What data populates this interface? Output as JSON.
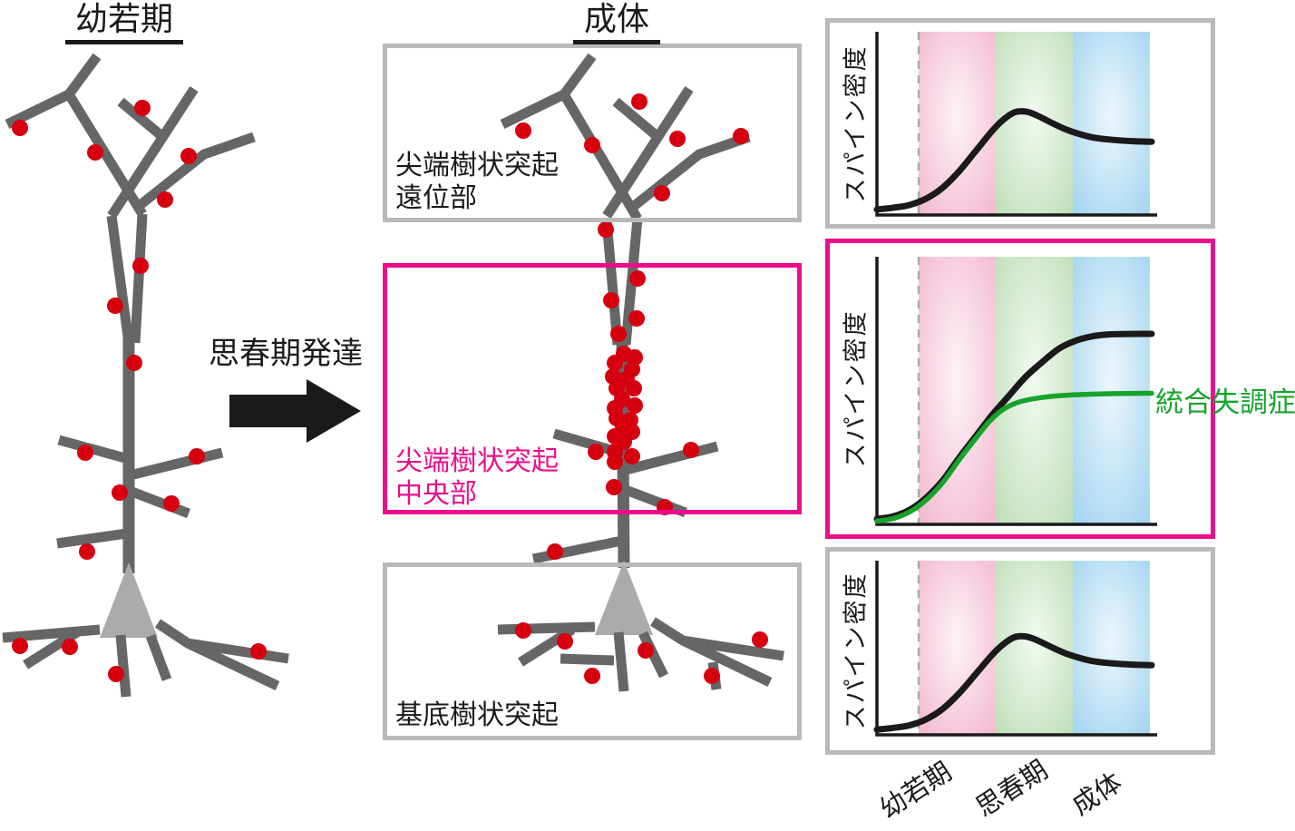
{
  "figure": {
    "juvenile_title": "幼若期",
    "adult_title": "成体",
    "arrow_label": "思春期発達"
  },
  "regions": {
    "distal": {
      "line1": "尖端樹状突起",
      "line2": "遠位部"
    },
    "central": {
      "line1": "尖端樹状突起",
      "line2": "中央部"
    },
    "basal": {
      "label": "基底樹状突起"
    }
  },
  "graphs": {
    "ylabel": "スパイン密度",
    "x_stage_labels": [
      "幼若期",
      "思春期",
      "成体"
    ],
    "annotation": "統合失調症"
  },
  "colors": {
    "dendrite": "#666666",
    "soma": "#ababab",
    "spine_red": "#d6000f",
    "magenta_accent": "#eb0d8b",
    "schizophrenia_green": "#17a32b",
    "box_border_gray": "#b9b9b9",
    "axis_black": "#1a1a1a",
    "dashed_gray": "#aaaaaa",
    "band_pink_edge": "#f3b8d0",
    "band_pink_center": "#fdf3f8",
    "band_green_edge": "#bfdfb8",
    "band_green_center": "#f2f9f0",
    "band_blue_edge": "#a2d4f0",
    "band_blue_center": "#edf7fd"
  },
  "chart_data": [
    {
      "type": "line",
      "region": "尖端樹状突起遠位部",
      "ylabel": "スパイン密度",
      "x_stages": [
        "幼若期",
        "思春期",
        "成体"
      ],
      "x_range": [
        0,
        1
      ],
      "y_range": [
        0,
        1
      ],
      "grid": false,
      "dashed_line_x": 0.152,
      "stage_bands": [
        {
          "label": "幼若期",
          "x": [
            0.152,
            0.432
          ],
          "band": "pink"
        },
        {
          "label": "思春期",
          "x": [
            0.432,
            0.713
          ],
          "band": "green"
        },
        {
          "label": "成体",
          "x": [
            0.713,
            0.993
          ],
          "band": "blue"
        }
      ],
      "series": [
        {
          "name": "",
          "color": "#1a1a1a",
          "points": [
            [
              0,
              0.03
            ],
            [
              0.06,
              0.04
            ],
            [
              0.12,
              0.055
            ],
            [
              0.18,
              0.09
            ],
            [
              0.24,
              0.15
            ],
            [
              0.3,
              0.24
            ],
            [
              0.36,
              0.35
            ],
            [
              0.42,
              0.46
            ],
            [
              0.46,
              0.52
            ],
            [
              0.5,
              0.56
            ],
            [
              0.54,
              0.565
            ],
            [
              0.58,
              0.545
            ],
            [
              0.64,
              0.5
            ],
            [
              0.7,
              0.46
            ],
            [
              0.78,
              0.425
            ],
            [
              0.86,
              0.41
            ],
            [
              0.93,
              0.403
            ],
            [
              1,
              0.4
            ]
          ]
        }
      ]
    },
    {
      "type": "line",
      "region": "尖端樹状突起中央部",
      "ylabel": "スパイン密度",
      "x_stages": [
        "幼若期",
        "思春期",
        "成体"
      ],
      "x_range": [
        0,
        1
      ],
      "y_range": [
        0,
        1
      ],
      "grid": false,
      "dashed_line_x": 0.152,
      "stage_bands": [
        {
          "label": "幼若期",
          "x": [
            0.152,
            0.432
          ],
          "band": "pink"
        },
        {
          "label": "思春期",
          "x": [
            0.432,
            0.713
          ],
          "band": "green"
        },
        {
          "label": "成体",
          "x": [
            0.713,
            0.993
          ],
          "band": "blue"
        }
      ],
      "series": [
        {
          "name": "",
          "color": "#1a1a1a",
          "points": [
            [
              0,
              0.02
            ],
            [
              0.06,
              0.03
            ],
            [
              0.12,
              0.055
            ],
            [
              0.18,
              0.1
            ],
            [
              0.24,
              0.165
            ],
            [
              0.3,
              0.25
            ],
            [
              0.36,
              0.33
            ],
            [
              0.42,
              0.41
            ],
            [
              0.48,
              0.48
            ],
            [
              0.54,
              0.55
            ],
            [
              0.6,
              0.605
            ],
            [
              0.66,
              0.655
            ],
            [
              0.72,
              0.685
            ],
            [
              0.78,
              0.702
            ],
            [
              0.85,
              0.71
            ],
            [
              1,
              0.712
            ]
          ]
        },
        {
          "name": "統合失調症",
          "color": "#17a32b",
          "points": [
            [
              0,
              0.012
            ],
            [
              0.06,
              0.022
            ],
            [
              0.12,
              0.047
            ],
            [
              0.18,
              0.092
            ],
            [
              0.24,
              0.157
            ],
            [
              0.3,
              0.242
            ],
            [
              0.36,
              0.322
            ],
            [
              0.41,
              0.385
            ],
            [
              0.46,
              0.43
            ],
            [
              0.52,
              0.458
            ],
            [
              0.6,
              0.474
            ],
            [
              0.7,
              0.483
            ],
            [
              0.85,
              0.488
            ],
            [
              1,
              0.49
            ]
          ]
        }
      ]
    },
    {
      "type": "line",
      "region": "基底樹状突起",
      "ylabel": "スパイン密度",
      "x_stages": [
        "幼若期",
        "思春期",
        "成体"
      ],
      "x_range": [
        0,
        1
      ],
      "y_range": [
        0,
        1
      ],
      "grid": false,
      "dashed_line_x": 0.152,
      "stage_bands": [
        {
          "label": "幼若期",
          "x": [
            0.152,
            0.432
          ],
          "band": "pink"
        },
        {
          "label": "思春期",
          "x": [
            0.432,
            0.713
          ],
          "band": "green"
        },
        {
          "label": "成体",
          "x": [
            0.713,
            0.993
          ],
          "band": "blue"
        }
      ],
      "series": [
        {
          "name": "",
          "color": "#1a1a1a",
          "points": [
            [
              0,
              0.03
            ],
            [
              0.06,
              0.04
            ],
            [
              0.12,
              0.055
            ],
            [
              0.18,
              0.09
            ],
            [
              0.24,
              0.15
            ],
            [
              0.3,
              0.24
            ],
            [
              0.36,
              0.35
            ],
            [
              0.42,
              0.46
            ],
            [
              0.46,
              0.52
            ],
            [
              0.5,
              0.56
            ],
            [
              0.54,
              0.565
            ],
            [
              0.58,
              0.545
            ],
            [
              0.64,
              0.5
            ],
            [
              0.7,
              0.46
            ],
            [
              0.78,
              0.425
            ],
            [
              0.86,
              0.41
            ],
            [
              0.93,
              0.403
            ],
            [
              1,
              0.4
            ]
          ]
        }
      ]
    }
  ]
}
